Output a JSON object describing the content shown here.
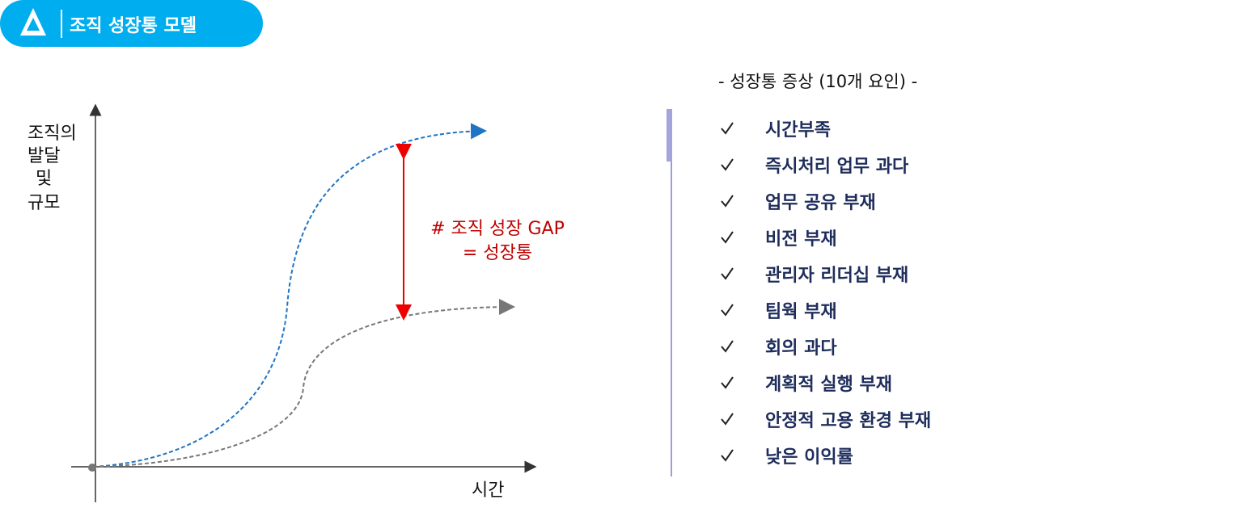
{
  "header": {
    "title": "조직 성장통 모델"
  },
  "diagram": {
    "y_axis_label": [
      "조직의",
      "발달",
      "및",
      "규모"
    ],
    "x_axis_label": "시간",
    "gap_label": [
      "# 조직 성장 GAP",
      "= 성장통"
    ]
  },
  "list": {
    "title": "- 성장통 증상 (10개 요인) -",
    "items": [
      "시간부족",
      "즉시처리 업무 과다",
      "업무 공유 부재",
      "비전 부재",
      "관리자 리더십 부재",
      "팀웍 부재",
      "회의 과다",
      "계획적 실행 부재",
      "안정적 고용 환경 부재",
      "낮은 이익률"
    ]
  }
}
